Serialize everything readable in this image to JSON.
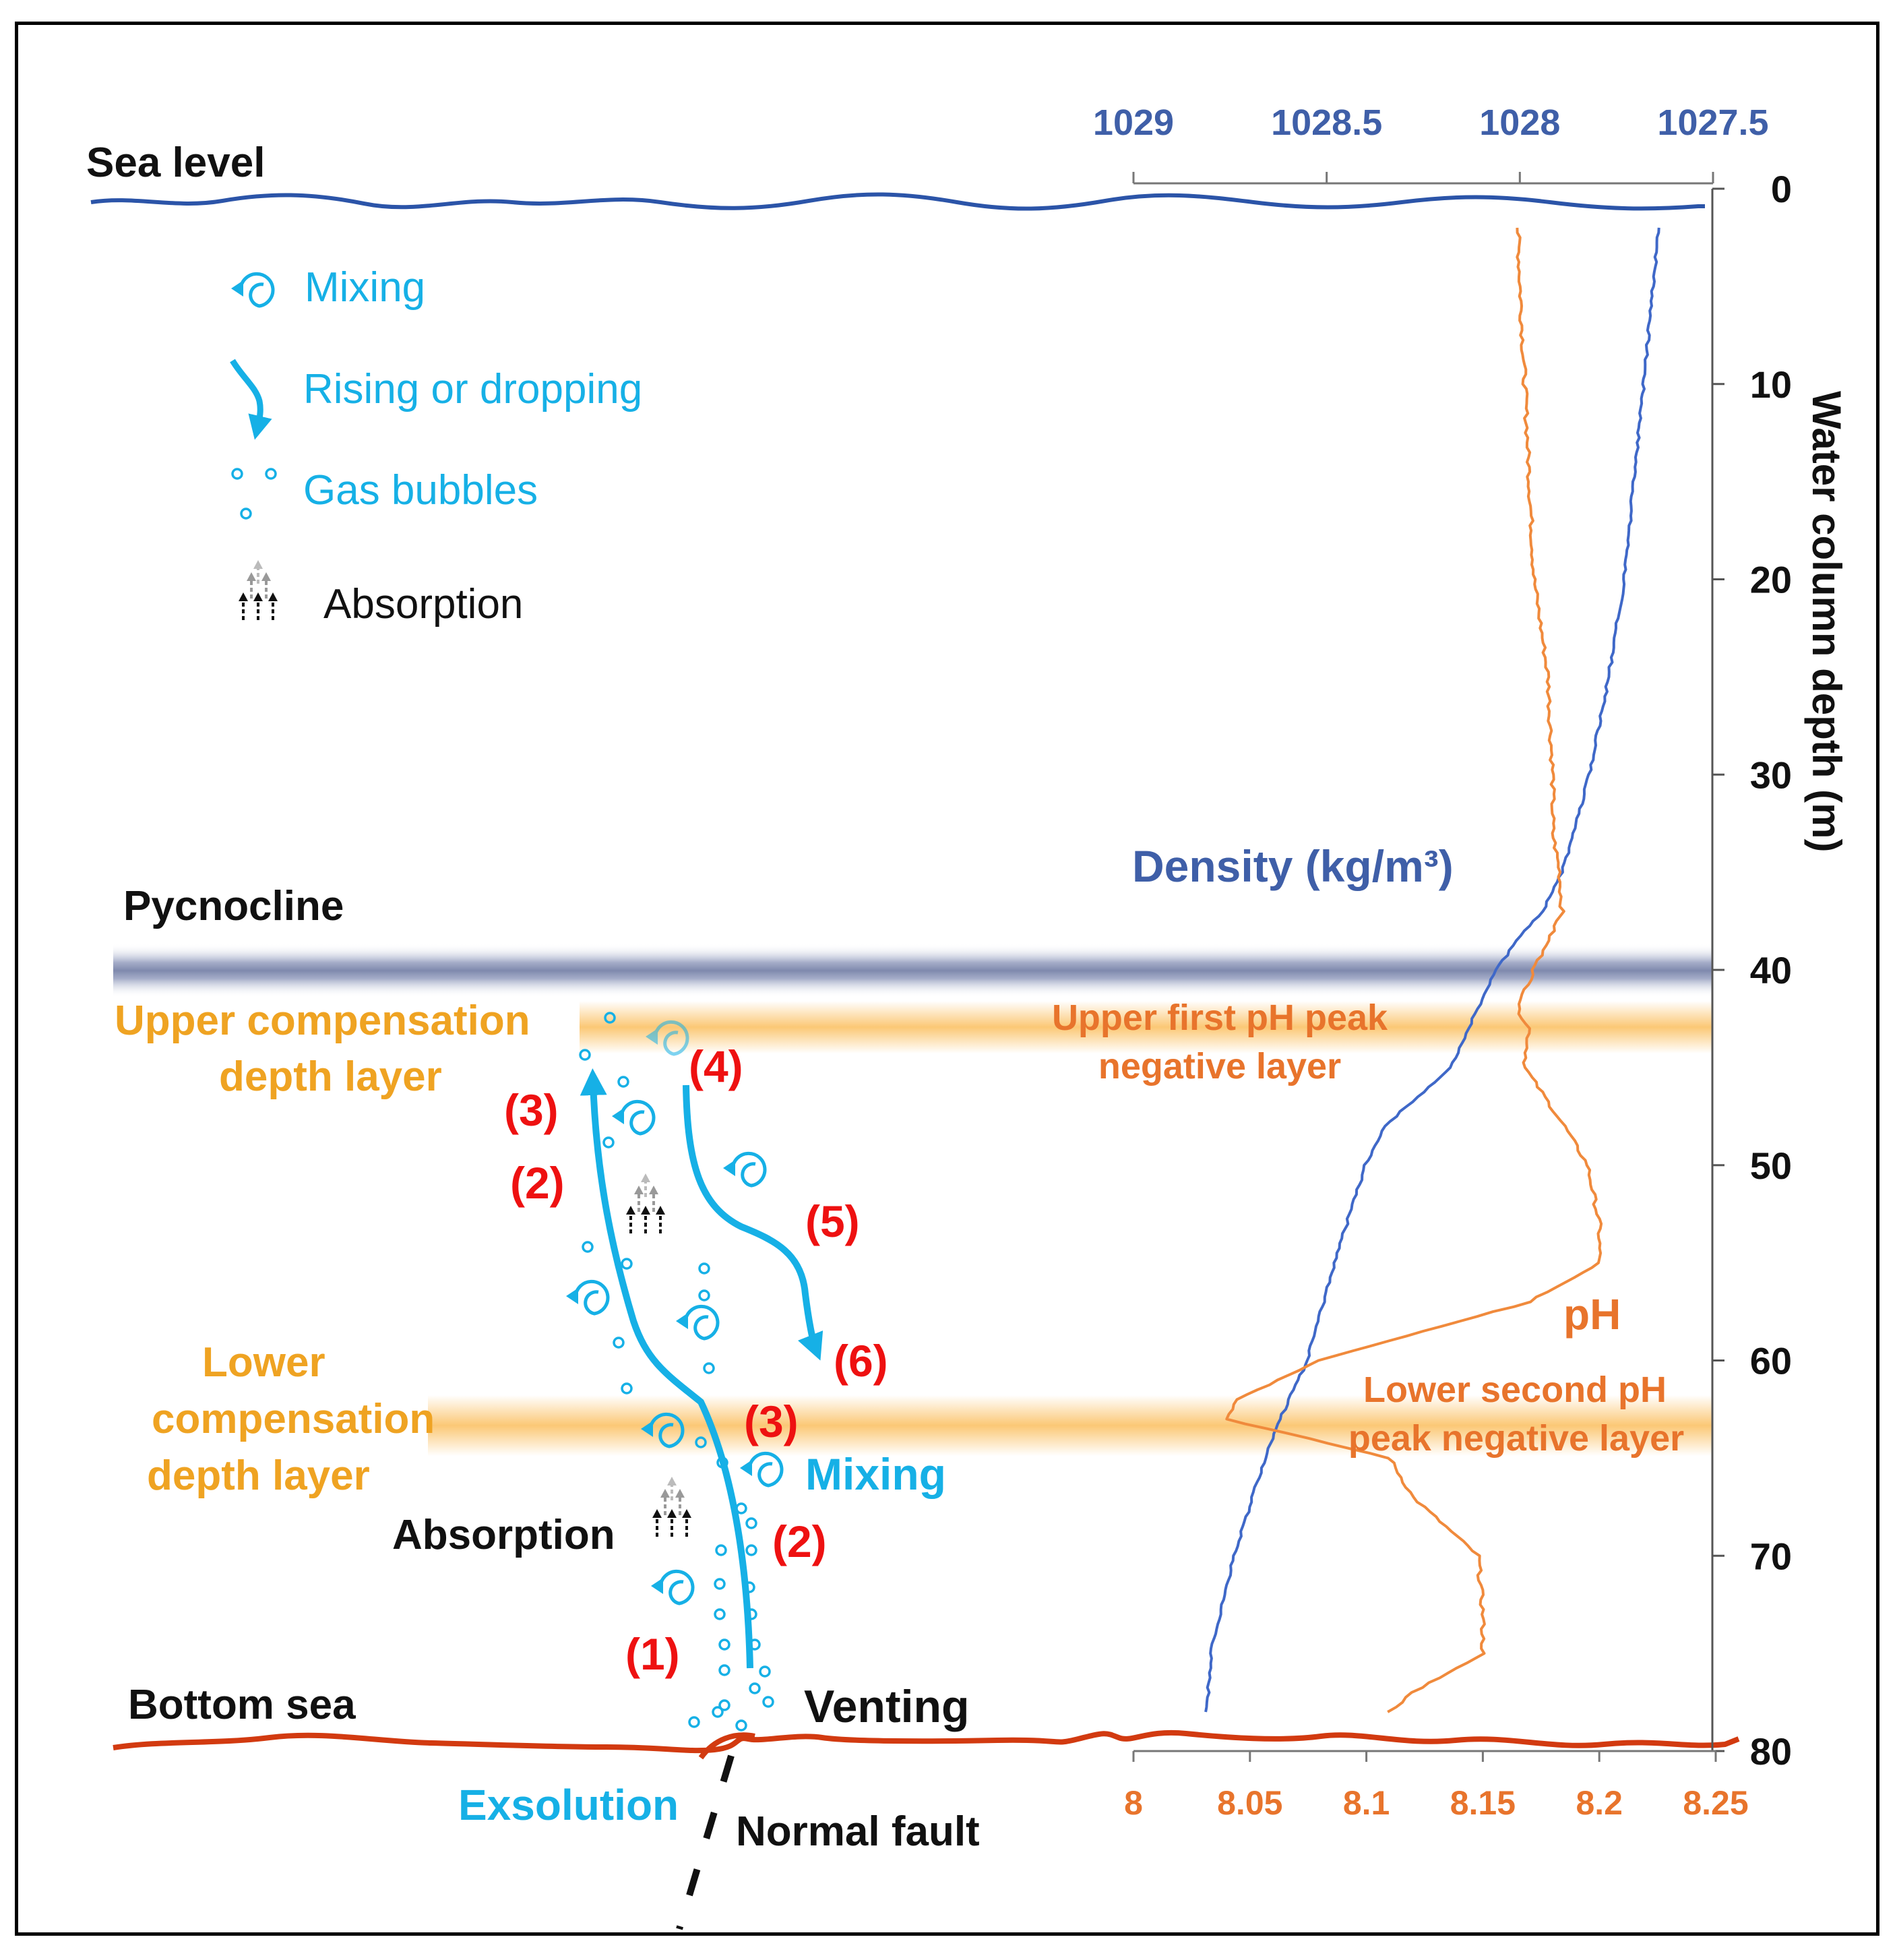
{
  "labels": {
    "sea_level": "Sea level",
    "pycnocline": "Pycnocline",
    "upper_comp_1": "Upper compensation",
    "upper_comp_2": "depth layer",
    "lower_comp_1": "Lower",
    "lower_comp_2": "compensation",
    "lower_comp_3": "depth layer",
    "bottom_sea": "Bottom sea",
    "venting": "Venting",
    "exsolution": "Exsolution",
    "normal_fault": "Normal fault",
    "absorption": "Absorption",
    "mixing": "Mixing",
    "upper_ph_1": "Upper first pH peak",
    "upper_ph_2": "negative layer",
    "lower_ph_1": "Lower second pH",
    "lower_ph_2": "peak negative layer",
    "density": "Density (kg/m³)",
    "ph": "pH",
    "depth_axis": "Water column depth (m)"
  },
  "legend": [
    {
      "icon": "mixing-icon",
      "label": "Mixing"
    },
    {
      "icon": "rising-dropping-icon",
      "label": "Rising or dropping"
    },
    {
      "icon": "gas-bubbles-icon",
      "label": "Gas bubbles"
    },
    {
      "icon": "absorption-icon",
      "label": "Absorption"
    }
  ],
  "steps": {
    "s1": "(1)",
    "s2_upper": "(2)",
    "s3_upper": "(3)",
    "s4": "(4)",
    "s5": "(5)",
    "s6": "(6)",
    "s3_lower": "(3)",
    "s2_lower": "(2)"
  },
  "colors": {
    "blue_process": "#16b0e6",
    "red_steps": "#ee1111",
    "gold_layers": "#efa322",
    "orange_ph": "#e8742c",
    "density_line": "#3f68c8",
    "sea_level_line": "#2b54a8",
    "seabed_line": "#d23a10"
  },
  "chart_data": {
    "type": "line",
    "title": "",
    "ylabel": "Water column depth (m)",
    "ylim": [
      0,
      80
    ],
    "yticks": [
      0,
      10,
      20,
      30,
      40,
      50,
      60,
      70,
      80
    ],
    "density_axis": {
      "label": "Density (kg/m³)",
      "range": [
        1029,
        1027.5
      ],
      "ticks": [
        1029,
        1028.5,
        1028,
        1027.5
      ],
      "position": "top"
    },
    "ph_axis": {
      "label": "pH",
      "range": [
        8,
        8.25
      ],
      "ticks": [
        8,
        8.05,
        8.1,
        8.15,
        8.2,
        8.25
      ],
      "position": "bottom"
    },
    "series": [
      {
        "name": "Density",
        "axis": "density",
        "depth": [
          2,
          10,
          20,
          25,
          30,
          33,
          35,
          37,
          38,
          40,
          42,
          45,
          48,
          50,
          55,
          60,
          63,
          65,
          70,
          75,
          78
        ],
        "values": [
          1027.64,
          1027.68,
          1027.73,
          1027.77,
          1027.82,
          1027.86,
          1027.89,
          1027.94,
          1027.99,
          1028.06,
          1028.11,
          1028.18,
          1028.35,
          1028.4,
          1028.48,
          1028.55,
          1028.62,
          1028.66,
          1028.74,
          1028.8,
          1028.81
        ]
      },
      {
        "name": "pH",
        "axis": "ph",
        "depth": [
          2,
          5,
          10,
          15,
          20,
          25,
          30,
          33,
          35,
          37,
          38,
          40,
          42,
          43,
          45,
          48,
          50,
          53,
          55,
          57,
          60,
          62,
          63,
          65,
          67,
          70,
          73,
          75,
          77,
          78
        ],
        "values": [
          8.165,
          8.166,
          8.168,
          8.17,
          8.172,
          8.178,
          8.18,
          8.18,
          8.183,
          8.184,
          8.18,
          8.172,
          8.165,
          8.17,
          8.168,
          8.185,
          8.195,
          8.2,
          8.2,
          8.17,
          8.08,
          8.045,
          8.04,
          8.11,
          8.12,
          8.148,
          8.15,
          8.15,
          8.12,
          8.11
        ]
      }
    ],
    "bands": [
      {
        "name": "Pycnocline",
        "depth": 40
      },
      {
        "name": "Upper first pH peak negative layer",
        "depth": 43
      },
      {
        "name": "Lower second pH peak negative layer",
        "depth": 63
      }
    ]
  }
}
